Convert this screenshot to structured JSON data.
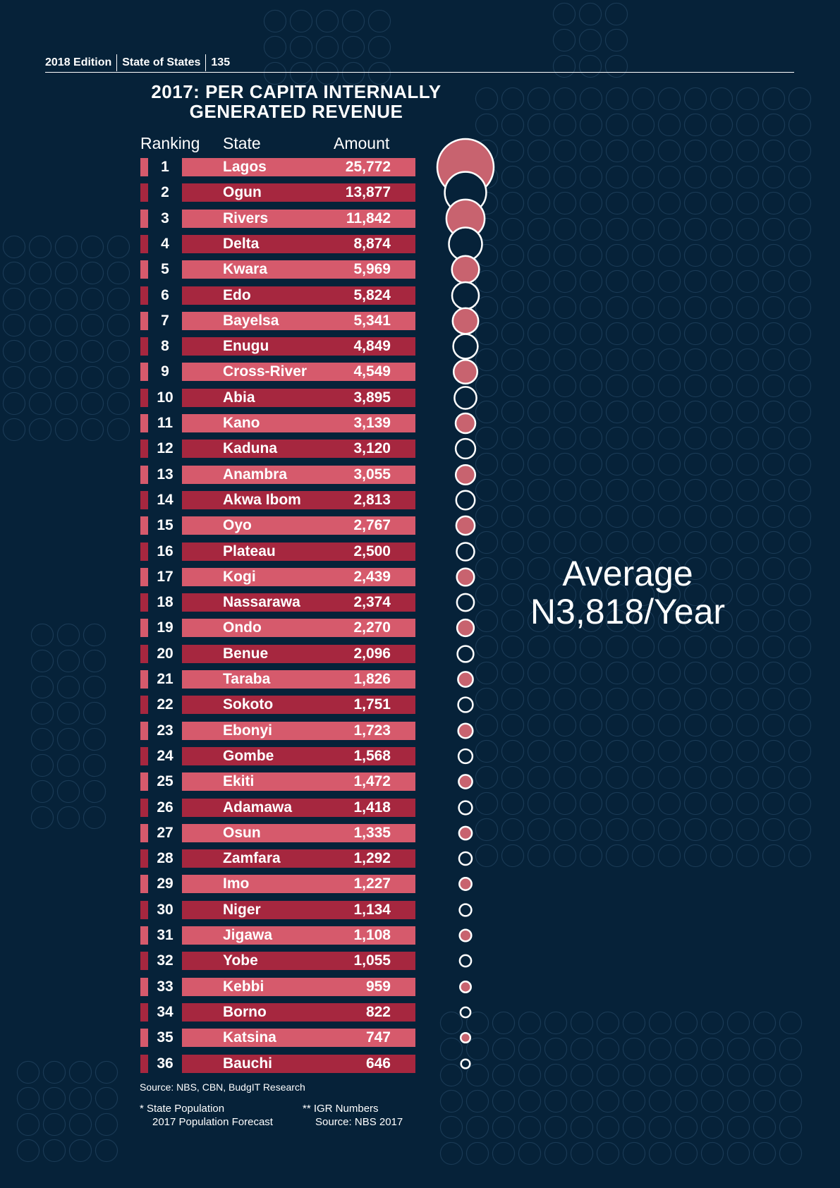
{
  "header": {
    "edition": "2018 Edition",
    "publication": "State of States",
    "page_number": "135"
  },
  "colors": {
    "background": "#062239",
    "bar_light": "#d65a6c",
    "bar_dark": "#a6273f",
    "bubble_fill_light": "#c8636f",
    "bubble_outline": "#ffffff"
  },
  "chart_data": {
    "type": "table",
    "title_line1": "2017: PER CAPITA INTERNALLY",
    "title_line2": "GENERATED REVENUE",
    "columns": [
      "Ranking",
      "State",
      "Amount"
    ],
    "rows": [
      {
        "rank": "1",
        "state": "Lagos",
        "amount": "25,772",
        "value": 25772
      },
      {
        "rank": "2",
        "state": "Ogun",
        "amount": "13,877",
        "value": 13877
      },
      {
        "rank": "3",
        "state": "Rivers",
        "amount": "11,842",
        "value": 11842
      },
      {
        "rank": "4",
        "state": "Delta",
        "amount": "8,874",
        "value": 8874
      },
      {
        "rank": "5",
        "state": "Kwara",
        "amount": "5,969",
        "value": 5969
      },
      {
        "rank": "6",
        "state": "Edo",
        "amount": "5,824",
        "value": 5824
      },
      {
        "rank": "7",
        "state": "Bayelsa",
        "amount": "5,341",
        "value": 5341
      },
      {
        "rank": "8",
        "state": "Enugu",
        "amount": "4,849",
        "value": 4849
      },
      {
        "rank": "9",
        "state": "Cross-River",
        "amount": "4,549",
        "value": 4549
      },
      {
        "rank": "10",
        "state": "Abia",
        "amount": "3,895",
        "value": 3895
      },
      {
        "rank": "11",
        "state": "Kano",
        "amount": "3,139",
        "value": 3139
      },
      {
        "rank": "12",
        "state": "Kaduna",
        "amount": "3,120",
        "value": 3120
      },
      {
        "rank": "13",
        "state": "Anambra",
        "amount": "3,055",
        "value": 3055
      },
      {
        "rank": "14",
        "state": "Akwa Ibom",
        "amount": "2,813",
        "value": 2813
      },
      {
        "rank": "15",
        "state": "Oyo",
        "amount": "2,767",
        "value": 2767
      },
      {
        "rank": "16",
        "state": "Plateau",
        "amount": "2,500",
        "value": 2500
      },
      {
        "rank": "17",
        "state": "Kogi",
        "amount": "2,439",
        "value": 2439
      },
      {
        "rank": "18",
        "state": "Nassarawa",
        "amount": "2,374",
        "value": 2374
      },
      {
        "rank": "19",
        "state": "Ondo",
        "amount": "2,270",
        "value": 2270
      },
      {
        "rank": "20",
        "state": "Benue",
        "amount": "2,096",
        "value": 2096
      },
      {
        "rank": "21",
        "state": "Taraba",
        "amount": "1,826",
        "value": 1826
      },
      {
        "rank": "22",
        "state": "Sokoto",
        "amount": "1,751",
        "value": 1751
      },
      {
        "rank": "23",
        "state": "Ebonyi",
        "amount": "1,723",
        "value": 1723
      },
      {
        "rank": "24",
        "state": "Gombe",
        "amount": "1,568",
        "value": 1568
      },
      {
        "rank": "25",
        "state": "Ekiti",
        "amount": "1,472",
        "value": 1472
      },
      {
        "rank": "26",
        "state": "Adamawa",
        "amount": "1,418",
        "value": 1418
      },
      {
        "rank": "27",
        "state": "Osun",
        "amount": "1,335",
        "value": 1335
      },
      {
        "rank": "28",
        "state": "Zamfara",
        "amount": "1,292",
        "value": 1292
      },
      {
        "rank": "29",
        "state": "Imo",
        "amount": "1,227",
        "value": 1227
      },
      {
        "rank": "30",
        "state": "Niger",
        "amount": "1,134",
        "value": 1134
      },
      {
        "rank": "31",
        "state": "Jigawa",
        "amount": "1,108",
        "value": 1108
      },
      {
        "rank": "32",
        "state": "Yobe",
        "amount": "1,055",
        "value": 1055
      },
      {
        "rank": "33",
        "state": "Kebbi",
        "amount": "959",
        "value": 959
      },
      {
        "rank": "34",
        "state": "Borno",
        "amount": "822",
        "value": 822
      },
      {
        "rank": "35",
        "state": "Katsina",
        "amount": "747",
        "value": 747
      },
      {
        "rank": "36",
        "state": "Bauchi",
        "amount": "646",
        "value": 646
      }
    ],
    "average_label": "Average",
    "average_value": "N3,818/Year"
  },
  "footer": {
    "source": "Source: NBS, CBN, BudgIT Research",
    "note_population_line1": "*  State Population",
    "note_population_line2": "2017 Population Forecast",
    "note_igr_line1": "** IGR Numbers",
    "note_igr_line2": "Source: NBS 2017"
  }
}
